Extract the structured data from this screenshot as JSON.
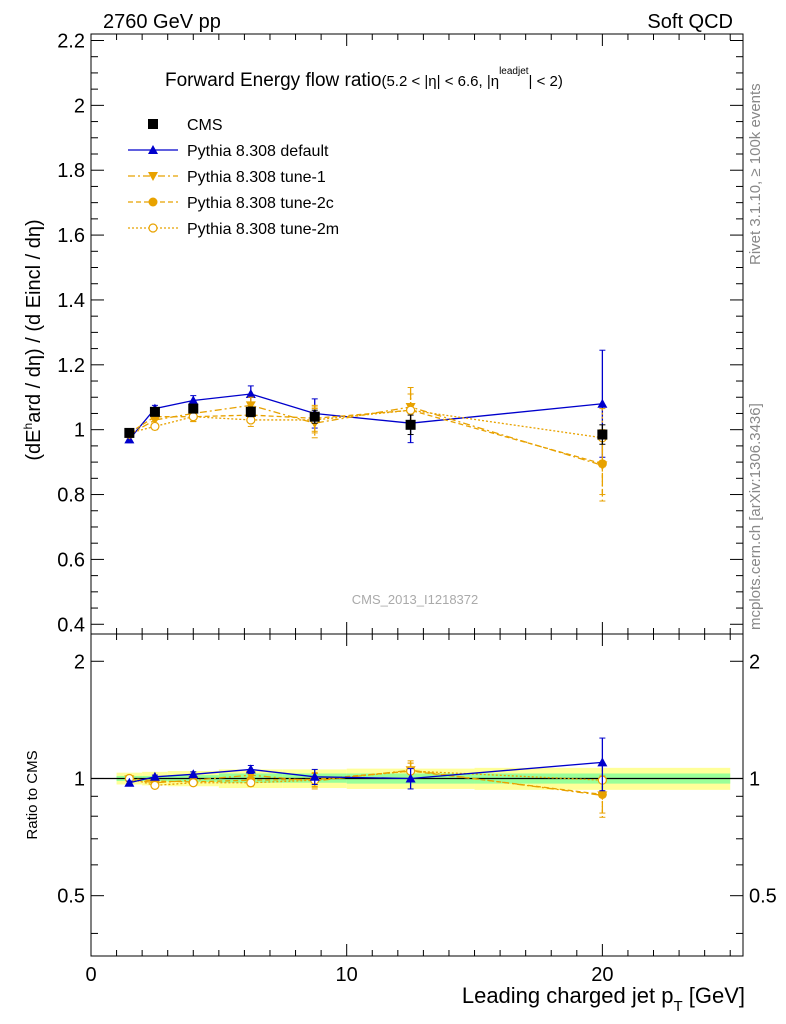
{
  "header": {
    "left": "2760 GeV pp",
    "right": "Soft QCD"
  },
  "side_labels": {
    "top": "Rivet 3.1.10, ≥ 100k events",
    "bottom": "mcplots.cern.ch [arXiv:1306.3436]"
  },
  "colors": {
    "cms": "#000000",
    "default": "#0000cc",
    "tunes": "#e8a200",
    "band_inner": "#99ff99",
    "band_outer": "#ffff99",
    "ref_line": "#000000"
  },
  "chart_data": [
    {
      "type": "scatter",
      "title_main": "Forward Energy flow ratio",
      "title_cut": "(5.2 < |η| < 6.6, |η",
      "title_sup": "leadjet",
      "title_end": "| < 2)",
      "ylabel": "(dE^hard / dη) / (d Eincl / dη)",
      "ylabel_parts": [
        "(dE",
        "h",
        "ard / dη) / (d Eincl / dη)"
      ],
      "xlim": [
        0,
        25.5
      ],
      "ylim": [
        0.37,
        2.22
      ],
      "yticks": [
        0.4,
        0.6,
        0.8,
        1,
        1.2,
        1.4,
        1.6,
        1.8,
        2,
        2.2
      ],
      "ytick_labels": [
        "0.4",
        "0.6",
        "0.8",
        "1",
        "1.2",
        "1.4",
        "1.6",
        "1.8",
        "2",
        "2.2"
      ],
      "watermark": "CMS_2013_I1218372",
      "legend": [
        {
          "label": "CMS",
          "marker": "square",
          "style": "none"
        },
        {
          "label": "Pythia 8.308 default",
          "marker": "triangle-up",
          "style": "solid"
        },
        {
          "label": "Pythia 8.308 tune-1",
          "marker": "triangle-down",
          "style": "dashdot"
        },
        {
          "label": "Pythia 8.308 tune-2c",
          "marker": "circle-filled",
          "style": "dashed"
        },
        {
          "label": "Pythia 8.308 tune-2m",
          "marker": "circle-open",
          "style": "dotted"
        }
      ],
      "series": [
        {
          "name": "CMS",
          "x": [
            1.5,
            2.5,
            4.0,
            6.25,
            8.75,
            12.5,
            20.0
          ],
          "y": [
            0.99,
            1.055,
            1.065,
            1.055,
            1.04,
            1.015,
            0.985
          ],
          "err": [
            0.01,
            0.01,
            0.01,
            0.015,
            0.02,
            0.03,
            0.03
          ]
        },
        {
          "name": "Pythia 8.308 default",
          "x": [
            1.5,
            2.5,
            4.0,
            6.25,
            8.75,
            12.5,
            20.0
          ],
          "y": [
            0.97,
            1.065,
            1.09,
            1.11,
            1.05,
            1.02,
            1.08
          ],
          "err": [
            0.01,
            0.01,
            0.015,
            0.025,
            0.045,
            0.06,
            0.165
          ]
        },
        {
          "name": "Pythia 8.308 tune-1",
          "x": [
            1.5,
            2.5,
            4.0,
            6.25,
            8.75,
            12.5,
            20.0
          ],
          "y": [
            0.985,
            1.03,
            1.05,
            1.075,
            1.02,
            1.07,
            0.89
          ],
          "err": [
            0.01,
            0.015,
            0.02,
            0.025,
            0.045,
            0.06,
            0.11
          ]
        },
        {
          "name": "Pythia 8.308 tune-2c",
          "x": [
            1.5,
            2.5,
            4.0,
            6.25,
            8.75,
            12.5,
            20.0
          ],
          "y": [
            0.99,
            1.04,
            1.04,
            1.045,
            1.035,
            1.06,
            0.895
          ],
          "err": [
            0.01,
            0.01,
            0.015,
            0.02,
            0.04,
            0.05,
            0.095
          ]
        },
        {
          "name": "Pythia 8.308 tune-2m",
          "x": [
            1.5,
            2.5,
            4.0,
            6.25,
            8.75,
            12.5,
            20.0
          ],
          "y": [
            0.99,
            1.01,
            1.04,
            1.03,
            1.03,
            1.06,
            0.975
          ],
          "err": [
            0.01,
            0.01,
            0.015,
            0.02,
            0.04,
            0.05,
            0.09
          ]
        }
      ]
    },
    {
      "type": "scatter",
      "ylabel": "Ratio to CMS",
      "xlabel_main": "Leading charged jet p",
      "xlabel_sub": "T",
      "xlabel_unit": " [GeV]",
      "xlim": [
        0,
        25.5
      ],
      "ylim": [
        0.35,
        2.35
      ],
      "y_scale": "log",
      "yticks": [
        0.5,
        1,
        2
      ],
      "ytick_labels": [
        "0.5",
        "1",
        "2"
      ],
      "xticks": [
        0,
        10,
        20
      ],
      "xtick_labels": [
        "0",
        "10",
        "20"
      ],
      "bands": [
        {
          "x0": 1.0,
          "x1": 2.0,
          "inner": [
            0.985,
            1.015
          ],
          "outer": [
            0.965,
            1.035
          ]
        },
        {
          "x0": 2.0,
          "x1": 3.0,
          "inner": [
            0.985,
            1.015
          ],
          "outer": [
            0.96,
            1.04
          ]
        },
        {
          "x0": 3.0,
          "x1": 5.0,
          "inner": [
            0.98,
            1.02
          ],
          "outer": [
            0.955,
            1.045
          ]
        },
        {
          "x0": 5.0,
          "x1": 7.5,
          "inner": [
            0.975,
            1.03
          ],
          "outer": [
            0.945,
            1.055
          ]
        },
        {
          "x0": 7.5,
          "x1": 10.0,
          "inner": [
            0.975,
            1.03
          ],
          "outer": [
            0.945,
            1.055
          ]
        },
        {
          "x0": 10.0,
          "x1": 15.0,
          "inner": [
            0.97,
            1.03
          ],
          "outer": [
            0.94,
            1.06
          ]
        },
        {
          "x0": 15.0,
          "x1": 25.0,
          "inner": [
            0.97,
            1.03
          ],
          "outer": [
            0.935,
            1.065
          ]
        }
      ],
      "series": [
        {
          "name": "Pythia 8.308 default",
          "x": [
            1.5,
            2.5,
            4.0,
            6.25,
            8.75,
            12.5,
            20.0
          ],
          "y": [
            0.975,
            1.01,
            1.025,
            1.055,
            1.01,
            1.0,
            1.1
          ],
          "err": [
            0.01,
            0.01,
            0.015,
            0.025,
            0.045,
            0.06,
            0.17
          ]
        },
        {
          "name": "Pythia 8.308 tune-1",
          "x": [
            1.5,
            2.5,
            4.0,
            6.25,
            8.75,
            12.5,
            20.0
          ],
          "y": [
            0.995,
            0.975,
            0.99,
            1.02,
            0.985,
            1.05,
            0.905
          ],
          "err": [
            0.01,
            0.015,
            0.02,
            0.025,
            0.045,
            0.06,
            0.11
          ]
        },
        {
          "name": "Pythia 8.308 tune-2c",
          "x": [
            1.5,
            2.5,
            4.0,
            6.25,
            8.75,
            12.5,
            20.0
          ],
          "y": [
            1.0,
            0.985,
            0.98,
            0.99,
            0.995,
            1.045,
            0.91
          ],
          "err": [
            0.01,
            0.01,
            0.015,
            0.02,
            0.04,
            0.05,
            0.095
          ]
        },
        {
          "name": "Pythia 8.308 tune-2m",
          "x": [
            1.5,
            2.5,
            4.0,
            6.25,
            8.75,
            12.5,
            20.0
          ],
          "y": [
            1.0,
            0.96,
            0.975,
            0.975,
            0.99,
            1.045,
            0.99
          ],
          "err": [
            0.01,
            0.01,
            0.015,
            0.02,
            0.04,
            0.05,
            0.09
          ]
        }
      ]
    }
  ]
}
